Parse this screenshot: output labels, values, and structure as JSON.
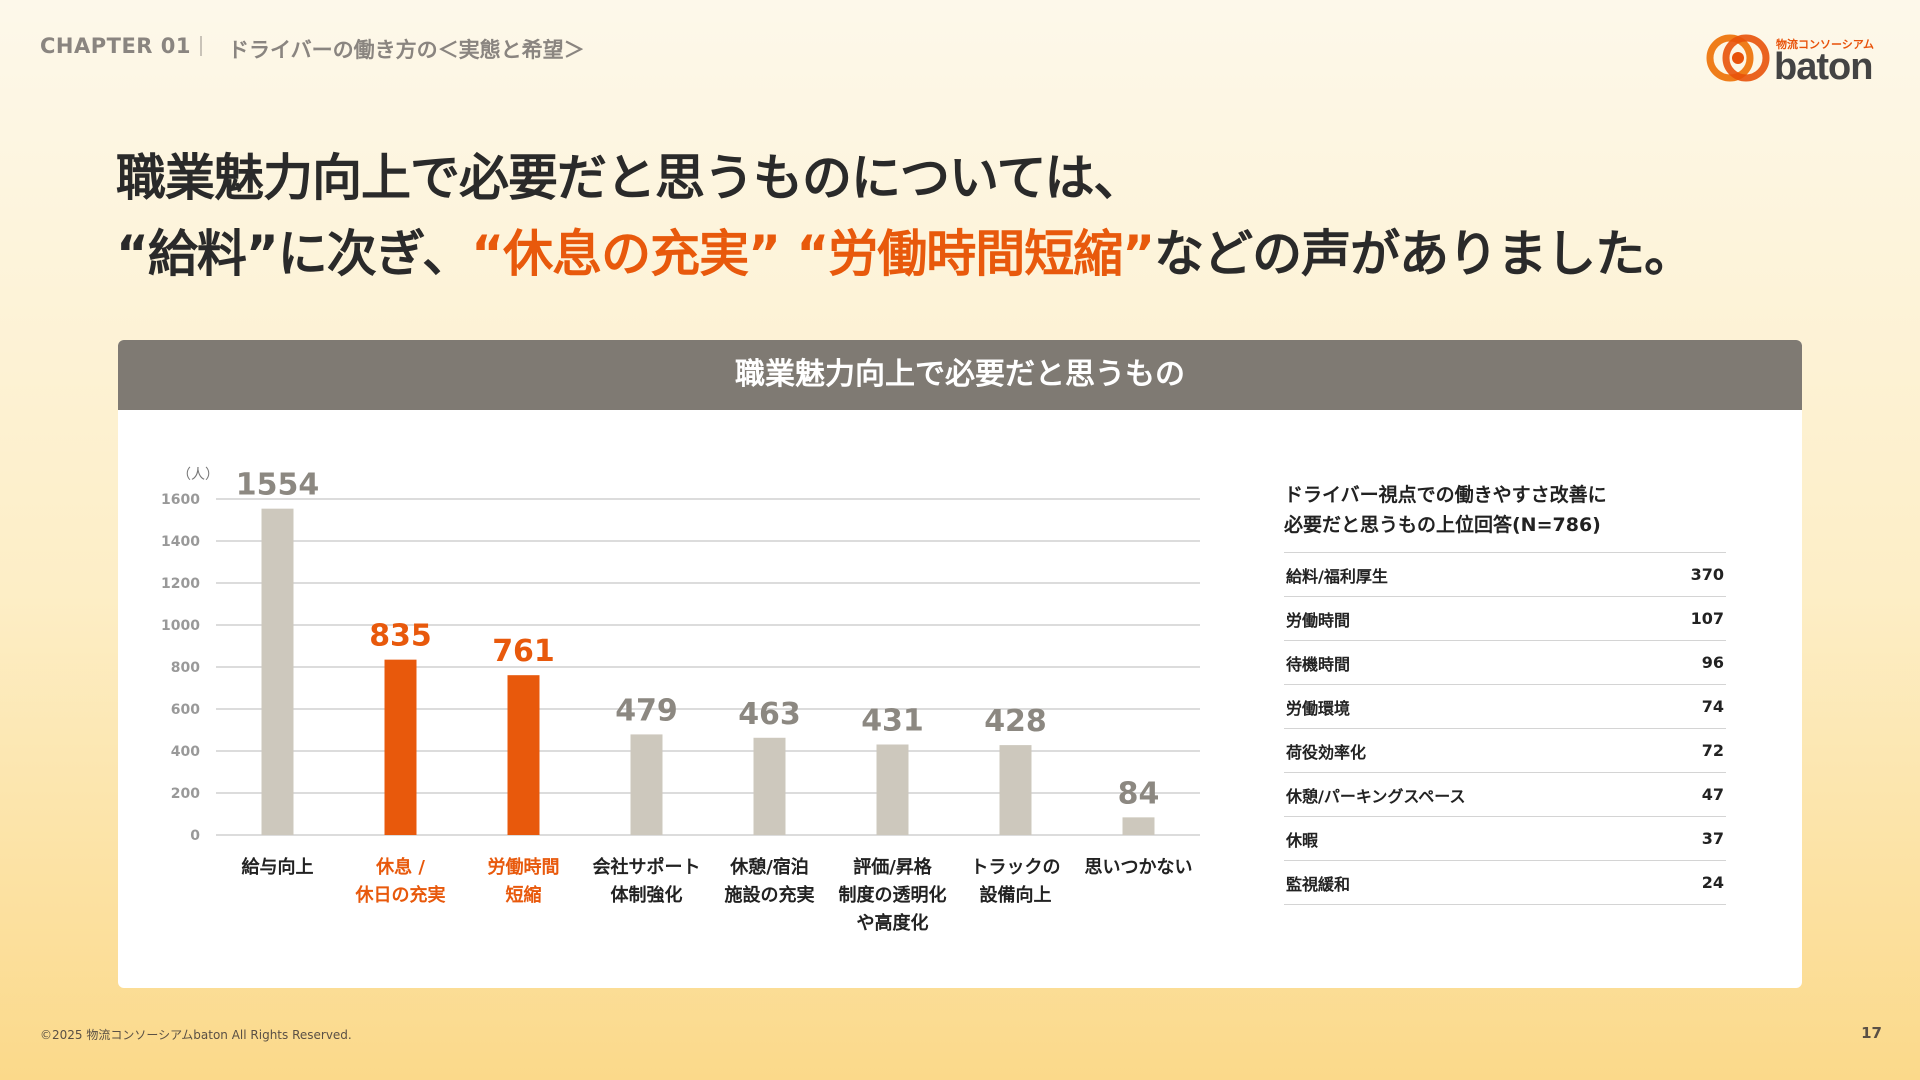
{
  "header": {
    "chapter": "CHAPTER 01",
    "subtitle": "ドライバーの働き方の＜実態と希望＞",
    "logo_small": "物流コンソーシアム",
    "logo_word": "baton"
  },
  "headline": {
    "line1": "職業魅力向上で必要だと思うものについては、",
    "l2_part1": "“給料”に次ぎ、",
    "l2_accent1": "“休息の充実”",
    "l2_space": " ",
    "l2_accent2": "“労働時間短縮”",
    "l2_part2": "などの声がありました。"
  },
  "card": {
    "title": "職業魅力向上で必要だと思うもの"
  },
  "chart_data": {
    "type": "bar",
    "unit_label": "（人）",
    "ylim": [
      0,
      1600
    ],
    "yticks": [
      0,
      200,
      400,
      600,
      800,
      1000,
      1200,
      1400,
      1600
    ],
    "grid": true,
    "categories": [
      [
        "給与向上"
      ],
      [
        "休息 /",
        "休日の充実"
      ],
      [
        "労働時間",
        "短縮"
      ],
      [
        "会社サポート",
        "体制強化"
      ],
      [
        "休憩/宿泊",
        "施設の充実"
      ],
      [
        "評価/昇格",
        "制度の透明化",
        "や高度化"
      ],
      [
        "トラックの",
        "設備向上"
      ],
      [
        "思いつかない"
      ]
    ],
    "values": [
      1554,
      835,
      761,
      479,
      463,
      431,
      428,
      84
    ],
    "highlight": [
      false,
      true,
      true,
      false,
      false,
      false,
      false,
      false
    ],
    "colors": {
      "normal": "#cdc8bd",
      "highlight": "#e8590c",
      "label_normal": "#8c8881",
      "text": "#222222"
    }
  },
  "ranking": {
    "title_line1": "ドライバー視点での働きやすさ改善に",
    "title_line2": "必要だと思うもの上位回答(N=786)",
    "rows": [
      {
        "label": "給料/福利厚生",
        "value": "370"
      },
      {
        "label": "労働時間",
        "value": "107"
      },
      {
        "label": "待機時間",
        "value": "96"
      },
      {
        "label": "労働環境",
        "value": "74"
      },
      {
        "label": "荷役効率化",
        "value": "72"
      },
      {
        "label": "休憩/パーキングスペース",
        "value": "47"
      },
      {
        "label": "休暇",
        "value": "37"
      },
      {
        "label": "監視緩和",
        "value": "24"
      }
    ]
  },
  "footer": {
    "copyright": "©2025 物流コンソーシアムbaton All Rights Reserved.",
    "page": "17"
  },
  "colors": {
    "accent": "#e8590c",
    "header_gray": "#7f7a73"
  }
}
